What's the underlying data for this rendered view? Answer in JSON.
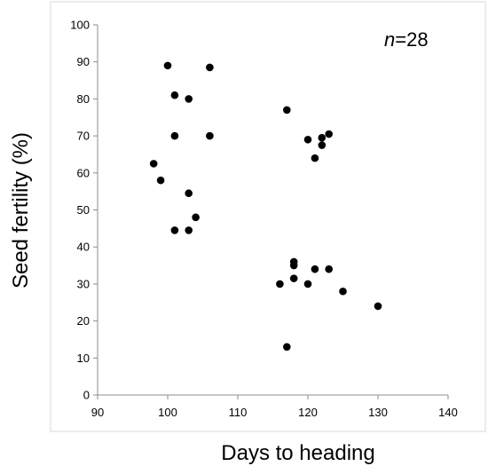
{
  "chart_data": {
    "type": "scatter",
    "title": "",
    "xlabel": "Days to heading",
    "ylabel": "Seed fertility (%)",
    "xlim": [
      90,
      140
    ],
    "ylim": [
      0,
      100
    ],
    "x_ticks": [
      90,
      100,
      110,
      120,
      130,
      140
    ],
    "y_ticks": [
      0,
      10,
      20,
      30,
      40,
      50,
      60,
      70,
      80,
      90,
      100
    ],
    "grid": false,
    "legend": "none",
    "annotation": {
      "italic": "n",
      "rest": "=28",
      "position": "top-right"
    },
    "marker_color": "#000000",
    "points": [
      {
        "x": 100,
        "y": 89
      },
      {
        "x": 106,
        "y": 88.5
      },
      {
        "x": 101,
        "y": 81
      },
      {
        "x": 103,
        "y": 80
      },
      {
        "x": 101,
        "y": 70
      },
      {
        "x": 106,
        "y": 70
      },
      {
        "x": 98,
        "y": 62.5
      },
      {
        "x": 99,
        "y": 58
      },
      {
        "x": 103,
        "y": 54.5
      },
      {
        "x": 104,
        "y": 48
      },
      {
        "x": 101,
        "y": 44.5
      },
      {
        "x": 103,
        "y": 44.5
      },
      {
        "x": 117,
        "y": 77
      },
      {
        "x": 120,
        "y": 69
      },
      {
        "x": 122,
        "y": 69.5
      },
      {
        "x": 123,
        "y": 70.5
      },
      {
        "x": 122,
        "y": 67.5
      },
      {
        "x": 121,
        "y": 64
      },
      {
        "x": 118,
        "y": 36
      },
      {
        "x": 118,
        "y": 35
      },
      {
        "x": 121,
        "y": 34
      },
      {
        "x": 123,
        "y": 34
      },
      {
        "x": 118,
        "y": 31.5
      },
      {
        "x": 116,
        "y": 30
      },
      {
        "x": 120,
        "y": 30
      },
      {
        "x": 125,
        "y": 28
      },
      {
        "x": 130,
        "y": 24
      },
      {
        "x": 117,
        "y": 13
      }
    ]
  }
}
